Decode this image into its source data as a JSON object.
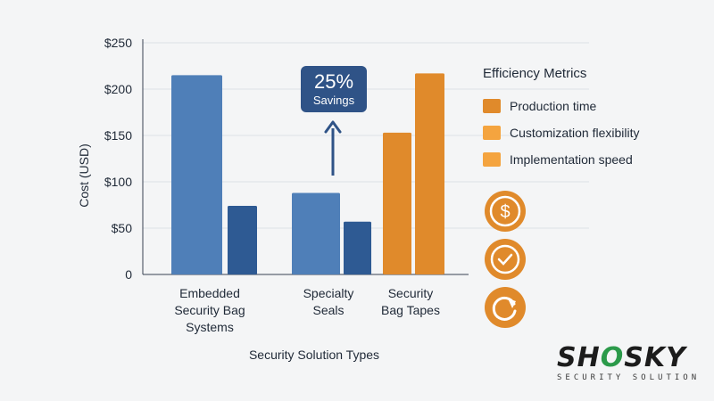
{
  "chart_data": {
    "type": "bar",
    "categories": [
      "Embedded Security Bag Systems",
      "Specialty Seals",
      "Security Bag Tapes"
    ],
    "category_label_lines": [
      [
        "Embedded",
        "Security Bag",
        "Systems"
      ],
      [
        "Specialty",
        "Seals"
      ],
      [
        "Security",
        "Bag Tapes"
      ]
    ],
    "series": [
      {
        "values": [
          215,
          88,
          153
        ],
        "colors": [
          "#4f7fb8",
          "#4f7fb8",
          "#e08a2b"
        ]
      },
      {
        "values": [
          74,
          57,
          217
        ],
        "colors": [
          "#2e5a93",
          "#2e5a93",
          "#e08a2b"
        ]
      }
    ],
    "ylabel": "Cost (USD)",
    "xlabel": "Security Solution Types",
    "ylim": [
      0,
      250
    ],
    "yticks": [
      0,
      50,
      100,
      150,
      200,
      250
    ],
    "ytick_labels": [
      "0",
      "$50",
      "$100",
      "$150",
      "$200",
      "$250"
    ],
    "grid": true,
    "annotation": {
      "value": "25%",
      "text": "Savings"
    }
  },
  "legend": {
    "title": "Efficiency Metrics",
    "items": [
      {
        "label": "Production time",
        "color": "#e08a2b"
      },
      {
        "label": "Customization flexibility",
        "color": "#f4a43f"
      },
      {
        "label": "Implementation speed",
        "color": "#f4a43f"
      }
    ]
  },
  "icons": [
    "dollar-icon",
    "check-clock-icon",
    "refresh-arrow-icon"
  ],
  "brand": {
    "name_start": "SH",
    "name_o": "O",
    "name_end": "SKY",
    "tagline": "SECURITY SOLUTION"
  }
}
